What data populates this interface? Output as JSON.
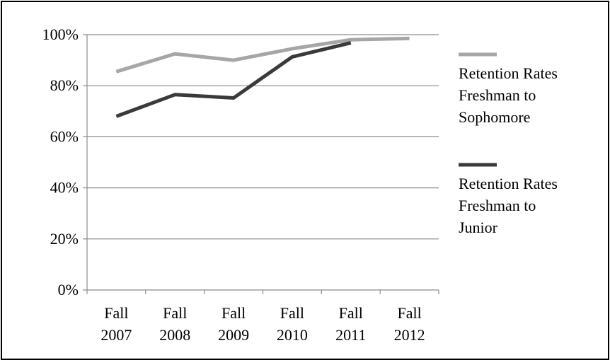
{
  "chart_data": {
    "type": "line",
    "title": "",
    "xlabel": "",
    "ylabel": "",
    "categories": [
      [
        "Fall",
        "2007"
      ],
      [
        "Fall",
        "2008"
      ],
      [
        "Fall",
        "2009"
      ],
      [
        "Fall",
        "2010"
      ],
      [
        "Fall",
        "2011"
      ],
      [
        "Fall",
        "2012"
      ]
    ],
    "y_ticks": [
      "0%",
      "20%",
      "40%",
      "60%",
      "80%",
      "100%"
    ],
    "ylim": [
      0,
      100
    ],
    "grid": true,
    "legend_position": "right",
    "series": [
      {
        "name_lines": [
          "Retention Rates",
          "Freshman to",
          "Sophomore"
        ],
        "color": "#a6a6a6",
        "values": [
          85.5,
          92.5,
          90,
          94.5,
          98,
          98.5
        ]
      },
      {
        "name_lines": [
          "Retention Rates",
          "Freshman to",
          "Junior"
        ],
        "color": "#3a3a3a",
        "values": [
          68,
          76.5,
          75.2,
          91.3,
          96.8,
          null
        ]
      }
    ]
  }
}
